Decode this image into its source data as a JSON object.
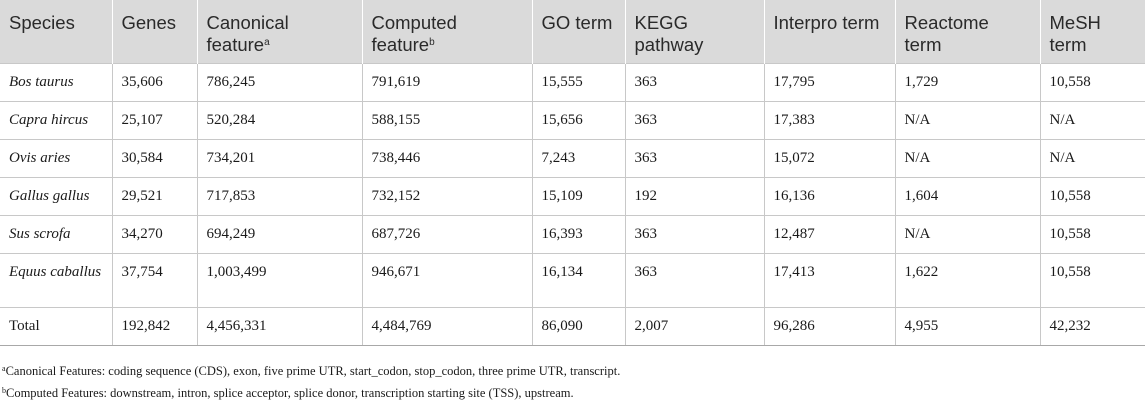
{
  "table": {
    "headers": [
      {
        "label": "Species",
        "sup": ""
      },
      {
        "label": "Genes",
        "sup": ""
      },
      {
        "label": "Canonical feature",
        "sup": "a"
      },
      {
        "label": "Computed feature",
        "sup": "b"
      },
      {
        "label": "GO term",
        "sup": ""
      },
      {
        "label": "KEGG pathway",
        "sup": ""
      },
      {
        "label": "Interpro term",
        "sup": ""
      },
      {
        "label": "Reactome term",
        "sup": ""
      },
      {
        "label": "MeSH term",
        "sup": ""
      }
    ],
    "rows": [
      [
        "Bos taurus",
        "35,606",
        "786,245",
        "791,619",
        "15,555",
        "363",
        "17,795",
        "1,729",
        "10,558"
      ],
      [
        "Capra hircus",
        "25,107",
        "520,284",
        "588,155",
        "15,656",
        "363",
        "17,383",
        "N/A",
        "N/A"
      ],
      [
        "Ovis aries",
        "30,584",
        "734,201",
        "738,446",
        "7,243",
        "363",
        "15,072",
        "N/A",
        "N/A"
      ],
      [
        "Gallus gallus",
        "29,521",
        "717,853",
        "732,152",
        "15,109",
        "192",
        "16,136",
        "1,604",
        "10,558"
      ],
      [
        "Sus scrofa",
        "34,270",
        "694,249",
        "687,726",
        "16,393",
        "363",
        "12,487",
        "N/A",
        "10,558"
      ],
      [
        "Equus caballus",
        "37,754",
        "1,003,499",
        "946,671",
        "16,134",
        "363",
        "17,413",
        "1,622",
        "10,558"
      ]
    ],
    "total": [
      "Total",
      "192,842",
      "4,456,331",
      "4,484,769",
      "86,090",
      "2,007",
      "96,286",
      "4,955",
      "42,232"
    ]
  },
  "footnotes": {
    "a_mark": "a",
    "a_text": "Canonical Features: coding sequence (CDS), exon, five prime UTR, start_codon, stop_codon, three prime UTR, transcript.",
    "b_mark": "b",
    "b_text": "Computed Features: downstream, intron, splice acceptor, splice donor, transcription starting site (TSS), upstream."
  }
}
